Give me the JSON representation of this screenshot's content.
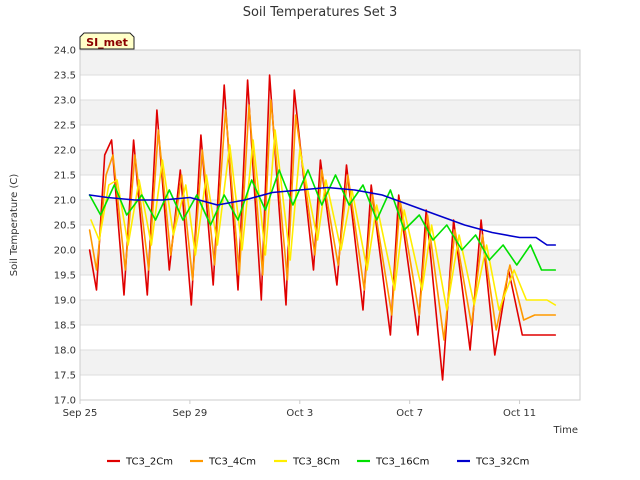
{
  "chart_data": {
    "type": "line",
    "title": "Soil Temperatures Set 3",
    "xlabel": "Time",
    "ylabel": "Soil Temperature (C)",
    "badge": "SI_met",
    "ylim": [
      17.0,
      24.0
    ],
    "yticks": [
      17.0,
      17.5,
      18.0,
      18.5,
      19.0,
      19.5,
      20.0,
      20.5,
      21.0,
      21.5,
      22.0,
      22.5,
      23.0,
      23.5,
      24.0
    ],
    "xlim": [
      0,
      18.2
    ],
    "xticks": [
      {
        "value": 0,
        "label": "Sep 25"
      },
      {
        "value": 4,
        "label": "Sep 29"
      },
      {
        "value": 8,
        "label": "Oct 3"
      },
      {
        "value": 12,
        "label": "Oct 7"
      },
      {
        "value": 16,
        "label": "Oct 11"
      }
    ],
    "grid": true,
    "legend_position": "bottom",
    "series": [
      {
        "name": "TC3_2Cm",
        "color": "#e00000",
        "x": [
          0.35,
          0.6,
          0.9,
          1.15,
          1.6,
          1.95,
          2.45,
          2.8,
          3.25,
          3.65,
          4.05,
          4.4,
          4.85,
          5.25,
          5.75,
          6.1,
          6.6,
          6.9,
          7.5,
          7.8,
          8.5,
          8.75,
          9.35,
          9.7,
          10.3,
          10.6,
          11.3,
          11.6,
          12.3,
          12.6,
          13.2,
          13.6,
          14.2,
          14.6,
          15.1,
          15.6,
          16.1,
          16.5,
          17.0,
          17.3
        ],
        "y": [
          20.0,
          19.2,
          21.9,
          22.2,
          19.1,
          22.2,
          19.1,
          22.8,
          19.6,
          21.6,
          18.9,
          22.3,
          19.3,
          23.3,
          19.2,
          23.4,
          19.0,
          23.5,
          18.9,
          23.2,
          19.6,
          21.8,
          19.3,
          21.7,
          18.8,
          21.3,
          18.3,
          21.1,
          18.3,
          20.8,
          17.4,
          20.6,
          18.0,
          20.6,
          17.9,
          19.6,
          18.3,
          18.3,
          18.3,
          18.3
        ]
      },
      {
        "name": "TC3_4Cm",
        "color": "#ff9900",
        "x": [
          0.35,
          0.6,
          0.95,
          1.2,
          1.65,
          2.0,
          2.5,
          2.85,
          3.3,
          3.7,
          4.1,
          4.45,
          4.9,
          5.3,
          5.8,
          6.15,
          6.65,
          6.95,
          7.55,
          7.85,
          8.55,
          8.8,
          9.4,
          9.75,
          10.35,
          10.65,
          11.35,
          11.65,
          12.35,
          12.65,
          13.25,
          13.65,
          14.25,
          14.65,
          15.15,
          15.65,
          16.15,
          16.55,
          17.0,
          17.3
        ],
        "y": [
          20.4,
          19.6,
          21.5,
          21.9,
          19.6,
          21.9,
          19.6,
          22.4,
          19.9,
          21.5,
          19.4,
          22.0,
          19.7,
          22.8,
          19.5,
          22.9,
          19.5,
          23.0,
          19.4,
          22.7,
          19.9,
          21.6,
          19.7,
          21.5,
          19.2,
          21.1,
          18.7,
          21.0,
          18.7,
          20.7,
          18.2,
          20.4,
          18.5,
          20.3,
          18.4,
          19.7,
          18.6,
          18.7,
          18.7,
          18.7
        ]
      },
      {
        "name": "TC3_8Cm",
        "color": "#ffee00",
        "x": [
          0.4,
          0.7,
          1.05,
          1.35,
          1.75,
          2.15,
          2.6,
          3.0,
          3.4,
          3.85,
          4.2,
          4.6,
          5.0,
          5.45,
          5.9,
          6.3,
          6.75,
          7.1,
          7.65,
          8.0,
          8.65,
          8.95,
          9.5,
          9.9,
          10.45,
          10.8,
          11.45,
          11.8,
          12.45,
          12.8,
          13.35,
          13.8,
          14.35,
          14.8,
          15.25,
          15.8,
          16.25,
          16.7,
          17.0,
          17.3
        ],
        "y": [
          20.6,
          20.2,
          21.3,
          21.4,
          20.1,
          21.4,
          20.1,
          21.8,
          20.3,
          21.3,
          19.9,
          21.5,
          20.1,
          22.1,
          20.0,
          22.2,
          19.9,
          22.4,
          19.8,
          22.0,
          20.2,
          21.4,
          20.0,
          21.2,
          19.6,
          20.9,
          19.2,
          20.8,
          19.2,
          20.5,
          18.8,
          20.3,
          18.9,
          20.1,
          18.8,
          19.6,
          19.0,
          19.0,
          19.0,
          18.9
        ]
      },
      {
        "name": "TC3_16Cm",
        "color": "#00e000",
        "x": [
          0.35,
          0.75,
          1.25,
          1.7,
          2.25,
          2.75,
          3.25,
          3.75,
          4.25,
          4.75,
          5.25,
          5.75,
          6.25,
          6.75,
          7.25,
          7.75,
          8.3,
          8.8,
          9.3,
          9.8,
          10.3,
          10.8,
          11.3,
          11.8,
          12.35,
          12.85,
          13.35,
          13.9,
          14.4,
          14.9,
          15.4,
          15.9,
          16.4,
          16.8,
          17.1,
          17.3
        ],
        "y": [
          21.1,
          20.7,
          21.3,
          20.7,
          21.1,
          20.6,
          21.2,
          20.6,
          21.1,
          20.5,
          21.1,
          20.6,
          21.4,
          20.8,
          21.6,
          20.9,
          21.6,
          20.9,
          21.5,
          20.9,
          21.3,
          20.6,
          21.2,
          20.4,
          20.7,
          20.2,
          20.5,
          20.0,
          20.3,
          19.8,
          20.1,
          19.7,
          20.1,
          19.6,
          19.6,
          19.6
        ]
      },
      {
        "name": "TC3_32Cm",
        "color": "#0000cc",
        "x": [
          0.35,
          1.0,
          2.0,
          3.0,
          4.0,
          5.0,
          6.0,
          7.0,
          8.0,
          9.0,
          10.0,
          11.0,
          12.0,
          13.0,
          14.0,
          15.0,
          16.0,
          16.6,
          17.0,
          17.3
        ],
        "y": [
          21.1,
          21.05,
          21.0,
          21.0,
          21.05,
          20.9,
          21.0,
          21.15,
          21.2,
          21.25,
          21.2,
          21.1,
          20.9,
          20.7,
          20.5,
          20.35,
          20.25,
          20.25,
          20.1,
          20.1
        ]
      }
    ]
  }
}
